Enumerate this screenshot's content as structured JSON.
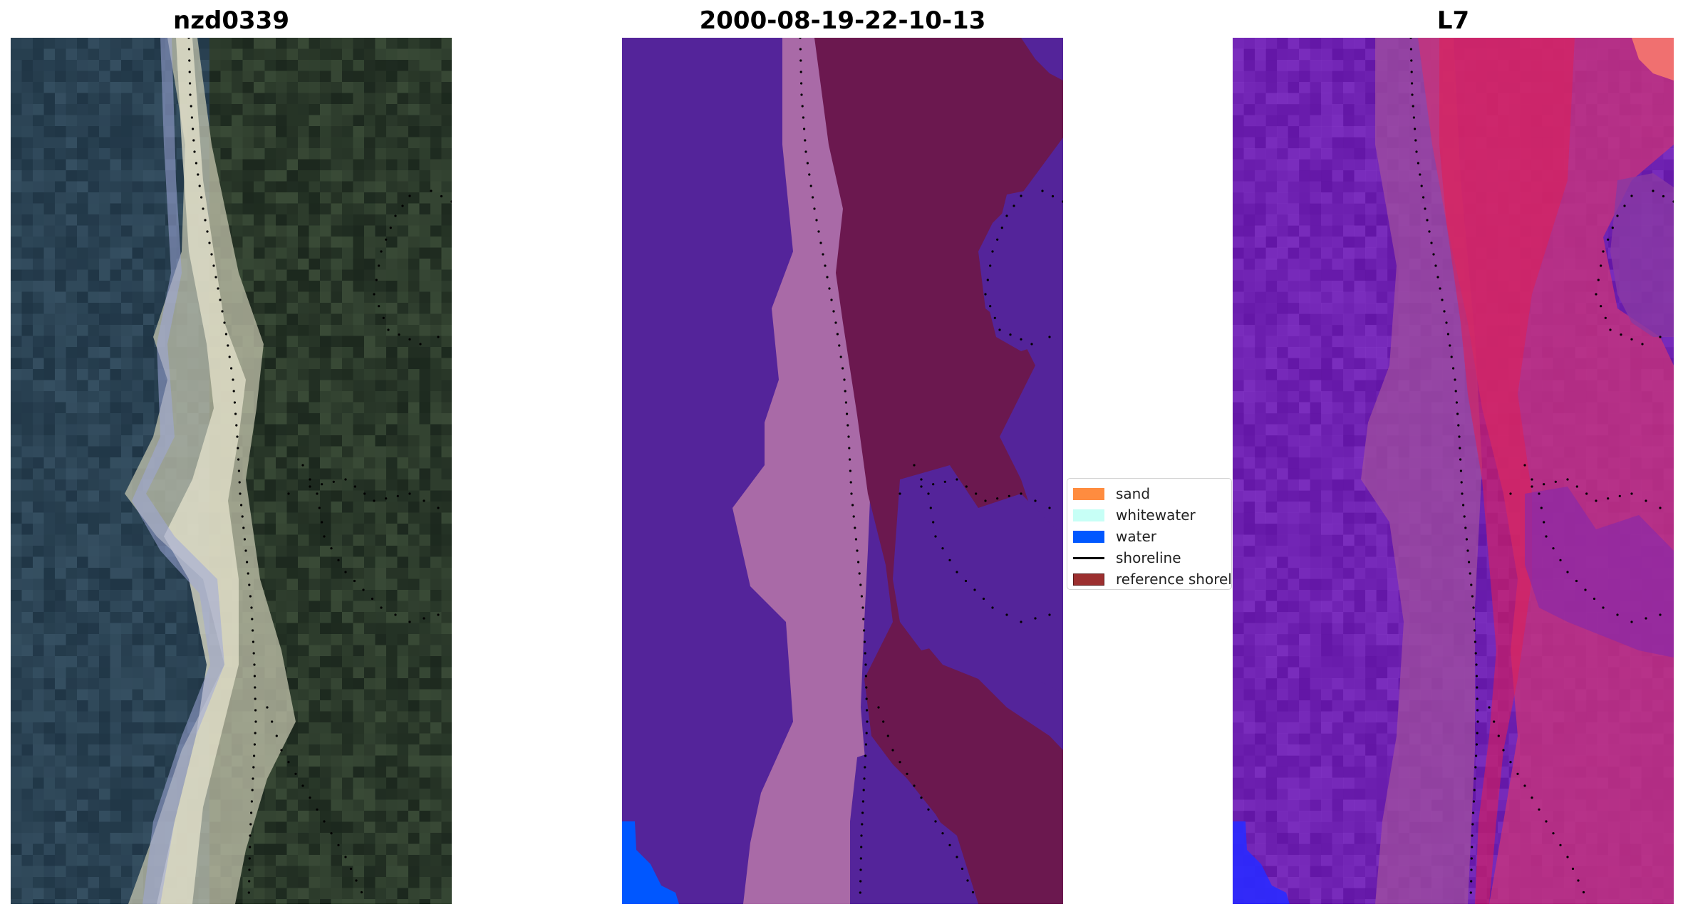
{
  "panels": [
    {
      "id": "rgb",
      "title": "nzd0339"
    },
    {
      "id": "classified",
      "title": "2000-08-19-22-10-13"
    },
    {
      "id": "mndwi",
      "title": "L7"
    }
  ],
  "legend": {
    "items": [
      {
        "label": "sand",
        "kind": "patch",
        "color": "#ff8c3f"
      },
      {
        "label": "whitewater",
        "kind": "patch",
        "color": "#c7fff6"
      },
      {
        "label": "water",
        "kind": "patch",
        "color": "#0057ff"
      },
      {
        "label": "shoreline",
        "kind": "line",
        "color": "#000000"
      },
      {
        "label": "reference shoreline",
        "kind": "patch",
        "color": "#9c2f2f"
      }
    ]
  },
  "colors": {
    "rgb_water": "#2d4052",
    "rgb_land": "#243524",
    "rgb_sand": "#d8d6c0",
    "class_water": "#54249a",
    "class_sand_band": "#a96aa7",
    "class_land": "#6b184f",
    "class_water_blue": "#0057ff",
    "ndwi_water": "#6a1ab0",
    "ndwi_mid": "#a04f9e",
    "ndwi_land": "#d8205e",
    "ndwi_blue": "#2a2aff"
  }
}
